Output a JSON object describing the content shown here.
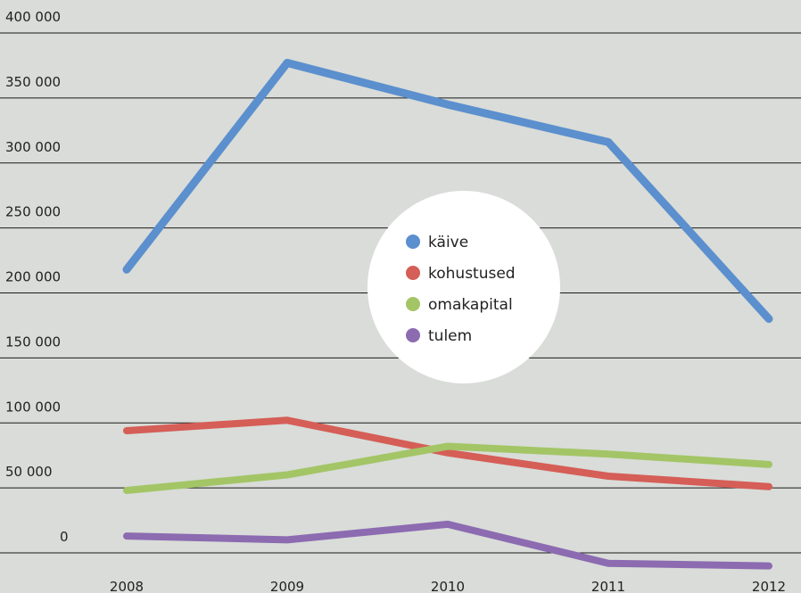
{
  "chart_data": {
    "type": "line",
    "categories": [
      "2008",
      "2009",
      "2010",
      "2011",
      "2012"
    ],
    "y_tick_labels": [
      "0",
      "50 000",
      "100 000",
      "150 000",
      "200 000",
      "250 000",
      "300 000",
      "350 000",
      "400 000"
    ],
    "ylim": [
      -20000,
      410000
    ],
    "grid": true,
    "legend_placement": "center",
    "series": [
      {
        "name": "käive",
        "color": "#5b8fce",
        "values": [
          218000,
          377000,
          345000,
          316000,
          180000
        ]
      },
      {
        "name": "kohustused",
        "color": "#d55e57",
        "values": [
          94000,
          102000,
          77000,
          59000,
          51000
        ]
      },
      {
        "name": "omakapital",
        "color": "#a3c566",
        "values": [
          48000,
          60000,
          82000,
          76000,
          68000
        ]
      },
      {
        "name": "tulem",
        "color": "#8c6bb1",
        "values": [
          13000,
          10000,
          22000,
          -8000,
          -10000
        ]
      }
    ]
  }
}
